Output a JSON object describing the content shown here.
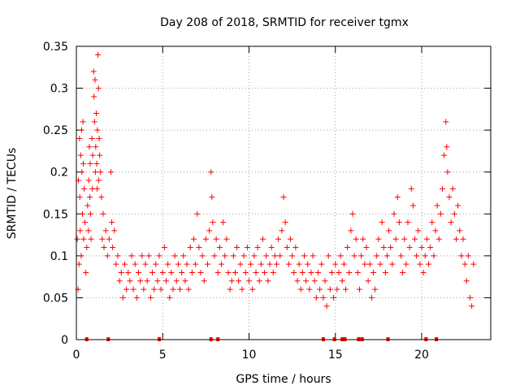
{
  "chart_data": {
    "type": "scatter",
    "title": "Day 208 of 2018, SRMTID for receiver tgmx",
    "xlabel": "GPS time / hours",
    "ylabel": "SRMTID / TECUs",
    "xlim": [
      0,
      24
    ],
    "ylim": [
      0,
      0.35
    ],
    "xticks": [
      0,
      5,
      10,
      15,
      20
    ],
    "yticks": [
      0,
      0.05,
      0.1,
      0.15,
      0.2,
      0.25,
      0.3,
      0.35
    ],
    "ytick_labels": [
      "0",
      "0.05",
      "0.1",
      "0.15",
      "0.2",
      "0.25",
      "0.3",
      "0.35"
    ],
    "grid": true,
    "marker": "+",
    "color": "#ff0000",
    "series": [
      {
        "name": "SRMTID",
        "points": [
          [
            0.05,
            0.12
          ],
          [
            0.1,
            0.06
          ],
          [
            0.12,
            0.19
          ],
          [
            0.15,
            0.09
          ],
          [
            0.18,
            0.24
          ],
          [
            0.2,
            0.17
          ],
          [
            0.22,
            0.13
          ],
          [
            0.25,
            0.22
          ],
          [
            0.28,
            0.1
          ],
          [
            0.3,
            0.25
          ],
          [
            0.32,
            0.2
          ],
          [
            0.35,
            0.15
          ],
          [
            0.38,
            0.26
          ],
          [
            0.4,
            0.21
          ],
          [
            0.42,
            0.12
          ],
          [
            0.45,
            0.18
          ],
          [
            0.5,
            0.14
          ],
          [
            0.55,
            0.08
          ],
          [
            0.6,
            0.11
          ],
          [
            0.65,
            0.16
          ],
          [
            0.7,
            0.13
          ],
          [
            0.72,
            0.19
          ],
          [
            0.75,
            0.23
          ],
          [
            0.78,
            0.17
          ],
          [
            0.8,
            0.21
          ],
          [
            0.82,
            0.15
          ],
          [
            0.85,
            0.12
          ],
          [
            0.9,
            0.24
          ],
          [
            0.92,
            0.18
          ],
          [
            0.95,
            0.22
          ],
          [
            1.0,
            0.32
          ],
          [
            1.02,
            0.29
          ],
          [
            1.05,
            0.26
          ],
          [
            1.08,
            0.31
          ],
          [
            1.1,
            0.2
          ],
          [
            1.12,
            0.23
          ],
          [
            1.15,
            0.27
          ],
          [
            1.18,
            0.21
          ],
          [
            1.2,
            0.18
          ],
          [
            1.22,
            0.25
          ],
          [
            1.25,
            0.34
          ],
          [
            1.28,
            0.3
          ],
          [
            1.3,
            0.19
          ],
          [
            1.32,
            0.24
          ],
          [
            1.35,
            0.22
          ],
          [
            1.4,
            0.2
          ],
          [
            1.45,
            0.17
          ],
          [
            1.5,
            0.12
          ],
          [
            1.55,
            0.15
          ],
          [
            1.6,
            0.11
          ],
          [
            1.7,
            0.13
          ],
          [
            1.8,
            0.1
          ],
          [
            1.9,
            0.12
          ],
          [
            2.0,
            0.2
          ],
          [
            2.05,
            0.14
          ],
          [
            2.1,
            0.11
          ],
          [
            2.2,
            0.13
          ],
          [
            2.3,
            0.09
          ],
          [
            2.4,
            0.1
          ],
          [
            2.5,
            0.07
          ],
          [
            2.6,
            0.08
          ],
          [
            2.7,
            0.05
          ],
          [
            2.8,
            0.09
          ],
          [
            2.9,
            0.06
          ],
          [
            3.0,
            0.08
          ],
          [
            3.1,
            0.07
          ],
          [
            3.2,
            0.1
          ],
          [
            3.3,
            0.06
          ],
          [
            3.4,
            0.09
          ],
          [
            3.5,
            0.05
          ],
          [
            3.6,
            0.08
          ],
          [
            3.7,
            0.07
          ],
          [
            3.8,
            0.1
          ],
          [
            3.9,
            0.06
          ],
          [
            4.0,
            0.09
          ],
          [
            4.1,
            0.07
          ],
          [
            4.2,
            0.1
          ],
          [
            4.3,
            0.05
          ],
          [
            4.4,
            0.08
          ],
          [
            4.5,
            0.06
          ],
          [
            4.6,
            0.09
          ],
          [
            4.7,
            0.07
          ],
          [
            4.8,
            0.1
          ],
          [
            4.9,
            0.06
          ],
          [
            5.0,
            0.08
          ],
          [
            5.1,
            0.11
          ],
          [
            5.2,
            0.07
          ],
          [
            5.3,
            0.09
          ],
          [
            5.4,
            0.05
          ],
          [
            5.5,
            0.08
          ],
          [
            5.6,
            0.06
          ],
          [
            5.7,
            0.1
          ],
          [
            5.8,
            0.07
          ],
          [
            5.9,
            0.09
          ],
          [
            6.0,
            0.06
          ],
          [
            6.1,
            0.08
          ],
          [
            6.2,
            0.1
          ],
          [
            6.3,
            0.07
          ],
          [
            6.4,
            0.09
          ],
          [
            6.5,
            0.06
          ],
          [
            6.6,
            0.11
          ],
          [
            6.7,
            0.08
          ],
          [
            6.8,
            0.12
          ],
          [
            6.9,
            0.09
          ],
          [
            7.0,
            0.15
          ],
          [
            7.1,
            0.11
          ],
          [
            7.2,
            0.08
          ],
          [
            7.3,
            0.1
          ],
          [
            7.4,
            0.07
          ],
          [
            7.5,
            0.12
          ],
          [
            7.6,
            0.09
          ],
          [
            7.7,
            0.13
          ],
          [
            7.8,
            0.2
          ],
          [
            7.85,
            0.17
          ],
          [
            7.9,
            0.14
          ],
          [
            8.0,
            0.1
          ],
          [
            8.1,
            0.12
          ],
          [
            8.2,
            0.08
          ],
          [
            8.3,
            0.11
          ],
          [
            8.4,
            0.09
          ],
          [
            8.5,
            0.14
          ],
          [
            8.6,
            0.1
          ],
          [
            8.7,
            0.12
          ],
          [
            8.8,
            0.08
          ],
          [
            8.9,
            0.06
          ],
          [
            9.0,
            0.07
          ],
          [
            9.1,
            0.1
          ],
          [
            9.2,
            0.08
          ],
          [
            9.3,
            0.11
          ],
          [
            9.4,
            0.07
          ],
          [
            9.5,
            0.09
          ],
          [
            9.6,
            0.06
          ],
          [
            9.7,
            0.1
          ],
          [
            9.8,
            0.08
          ],
          [
            9.9,
            0.11
          ],
          [
            10.0,
            0.07
          ],
          [
            10.1,
            0.09
          ],
          [
            10.2,
            0.06
          ],
          [
            10.3,
            0.1
          ],
          [
            10.4,
            0.08
          ],
          [
            10.5,
            0.11
          ],
          [
            10.6,
            0.07
          ],
          [
            10.7,
            0.09
          ],
          [
            10.8,
            0.12
          ],
          [
            10.9,
            0.08
          ],
          [
            11.0,
            0.1
          ],
          [
            11.1,
            0.07
          ],
          [
            11.2,
            0.09
          ],
          [
            11.3,
            0.11
          ],
          [
            11.4,
            0.08
          ],
          [
            11.5,
            0.1
          ],
          [
            11.6,
            0.09
          ],
          [
            11.7,
            0.12
          ],
          [
            11.8,
            0.1
          ],
          [
            11.9,
            0.13
          ],
          [
            12.0,
            0.17
          ],
          [
            12.1,
            0.14
          ],
          [
            12.2,
            0.11
          ],
          [
            12.3,
            0.09
          ],
          [
            12.4,
            0.12
          ],
          [
            12.5,
            0.1
          ],
          [
            12.6,
            0.08
          ],
          [
            12.7,
            0.11
          ],
          [
            12.8,
            0.07
          ],
          [
            12.9,
            0.09
          ],
          [
            13.0,
            0.06
          ],
          [
            13.1,
            0.08
          ],
          [
            13.2,
            0.1
          ],
          [
            13.3,
            0.07
          ],
          [
            13.4,
            0.09
          ],
          [
            13.5,
            0.06
          ],
          [
            13.6,
            0.08
          ],
          [
            13.7,
            0.1
          ],
          [
            13.8,
            0.07
          ],
          [
            13.9,
            0.05
          ],
          [
            14.0,
            0.08
          ],
          [
            14.1,
            0.06
          ],
          [
            14.2,
            0.09
          ],
          [
            14.3,
            0.05
          ],
          [
            14.4,
            0.07
          ],
          [
            14.5,
            0.04
          ],
          [
            14.6,
            0.1
          ],
          [
            14.7,
            0.06
          ],
          [
            14.8,
            0.08
          ],
          [
            14.9,
            0.05
          ],
          [
            15.0,
            0.09
          ],
          [
            15.1,
            0.06
          ],
          [
            15.2,
            0.08
          ],
          [
            15.3,
            0.1
          ],
          [
            15.4,
            0.07
          ],
          [
            15.5,
            0.09
          ],
          [
            15.6,
            0.06
          ],
          [
            15.7,
            0.11
          ],
          [
            15.8,
            0.08
          ],
          [
            15.9,
            0.13
          ],
          [
            16.0,
            0.15
          ],
          [
            16.1,
            0.1
          ],
          [
            16.2,
            0.12
          ],
          [
            16.3,
            0.08
          ],
          [
            16.4,
            0.06
          ],
          [
            16.5,
            0.1
          ],
          [
            16.6,
            0.12
          ],
          [
            16.7,
            0.09
          ],
          [
            16.8,
            0.11
          ],
          [
            16.9,
            0.07
          ],
          [
            17.0,
            0.09
          ],
          [
            17.1,
            0.05
          ],
          [
            17.2,
            0.08
          ],
          [
            17.3,
            0.06
          ],
          [
            17.4,
            0.1
          ],
          [
            17.5,
            0.12
          ],
          [
            17.6,
            0.09
          ],
          [
            17.7,
            0.14
          ],
          [
            17.8,
            0.11
          ],
          [
            17.9,
            0.08
          ],
          [
            18.0,
            0.1
          ],
          [
            18.1,
            0.13
          ],
          [
            18.2,
            0.11
          ],
          [
            18.3,
            0.09
          ],
          [
            18.4,
            0.15
          ],
          [
            18.5,
            0.12
          ],
          [
            18.6,
            0.17
          ],
          [
            18.7,
            0.14
          ],
          [
            18.8,
            0.1
          ],
          [
            18.9,
            0.08
          ],
          [
            19.0,
            0.12
          ],
          [
            19.1,
            0.09
          ],
          [
            19.2,
            0.14
          ],
          [
            19.3,
            0.11
          ],
          [
            19.4,
            0.18
          ],
          [
            19.5,
            0.16
          ],
          [
            19.6,
            0.12
          ],
          [
            19.7,
            0.1
          ],
          [
            19.8,
            0.13
          ],
          [
            19.9,
            0.09
          ],
          [
            20.0,
            0.11
          ],
          [
            20.1,
            0.08
          ],
          [
            20.2,
            0.1
          ],
          [
            20.3,
            0.12
          ],
          [
            20.4,
            0.09
          ],
          [
            20.5,
            0.11
          ],
          [
            20.6,
            0.14
          ],
          [
            20.7,
            0.1
          ],
          [
            20.8,
            0.13
          ],
          [
            20.9,
            0.16
          ],
          [
            21.0,
            0.12
          ],
          [
            21.1,
            0.15
          ],
          [
            21.2,
            0.18
          ],
          [
            21.3,
            0.22
          ],
          [
            21.4,
            0.26
          ],
          [
            21.45,
            0.23
          ],
          [
            21.5,
            0.2
          ],
          [
            21.6,
            0.17
          ],
          [
            21.7,
            0.14
          ],
          [
            21.8,
            0.18
          ],
          [
            21.9,
            0.15
          ],
          [
            22.0,
            0.12
          ],
          [
            22.1,
            0.16
          ],
          [
            22.2,
            0.13
          ],
          [
            22.3,
            0.1
          ],
          [
            22.4,
            0.12
          ],
          [
            22.5,
            0.09
          ],
          [
            22.6,
            0.07
          ],
          [
            22.7,
            0.1
          ],
          [
            22.8,
            0.05
          ],
          [
            22.9,
            0.04
          ],
          [
            23.0,
            0.09
          ]
        ]
      }
    ],
    "baseline_marks": [
      0.6,
      1.85,
      4.8,
      7.8,
      8.2,
      14.3,
      14.95,
      15.4,
      15.55,
      16.35,
      16.55,
      18.05,
      20.25,
      20.85
    ]
  }
}
